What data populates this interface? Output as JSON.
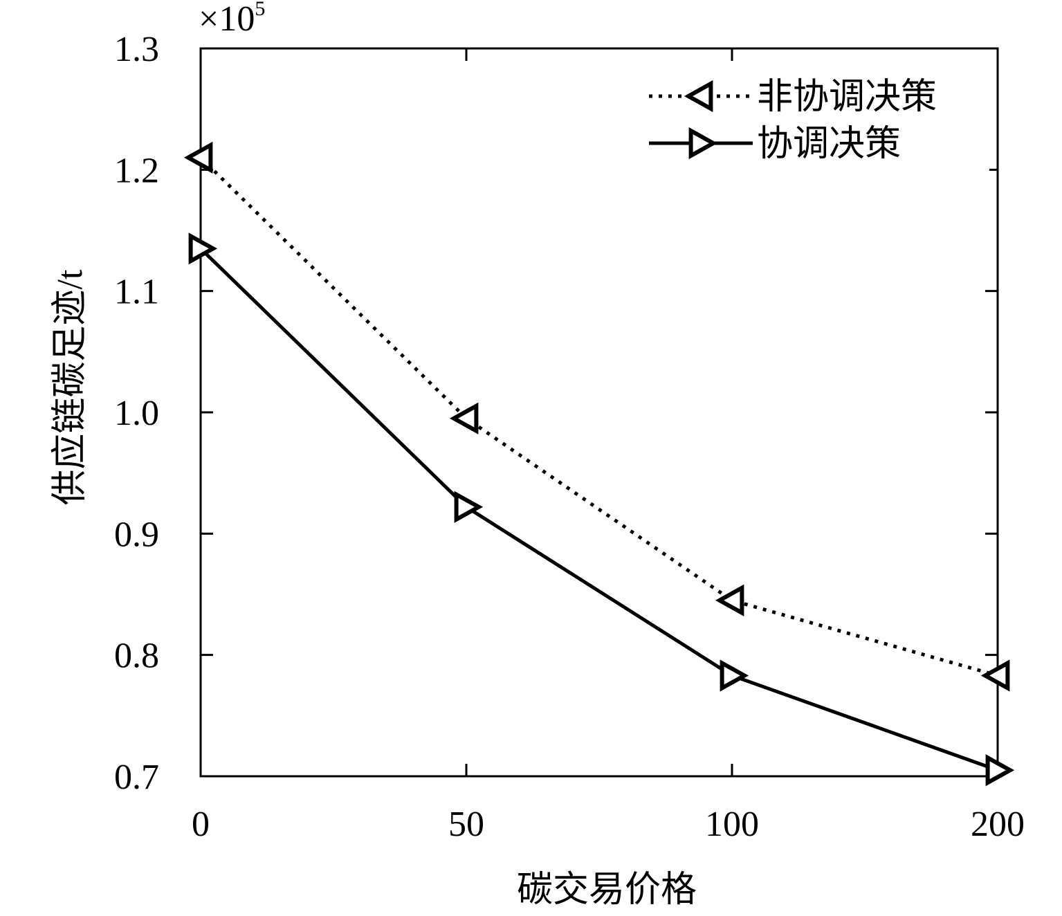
{
  "chart_data": {
    "type": "line",
    "title": "",
    "xlabel": "碳交易价格",
    "ylabel": "供应链碳足迹/t",
    "y_multiplier": "×10",
    "y_multiplier_exponent": "5",
    "categories": [
      "0",
      "50",
      "100",
      "200"
    ],
    "yticks": [
      "0.7",
      "0.8",
      "0.9",
      "1.0",
      "1.1",
      "1.2",
      "1.3"
    ],
    "ylim": [
      0.7,
      1.3
    ],
    "grid": false,
    "legend_position": "top-right",
    "series": [
      {
        "name": "非协调决策",
        "line_style": "dotted",
        "marker": "triangle-left",
        "color": "#000000",
        "values": [
          1.21,
          0.995,
          0.845,
          0.783
        ]
      },
      {
        "name": "协调决策",
        "line_style": "solid",
        "marker": "triangle-right",
        "color": "#000000",
        "values": [
          1.135,
          0.922,
          0.783,
          0.705
        ]
      }
    ]
  }
}
